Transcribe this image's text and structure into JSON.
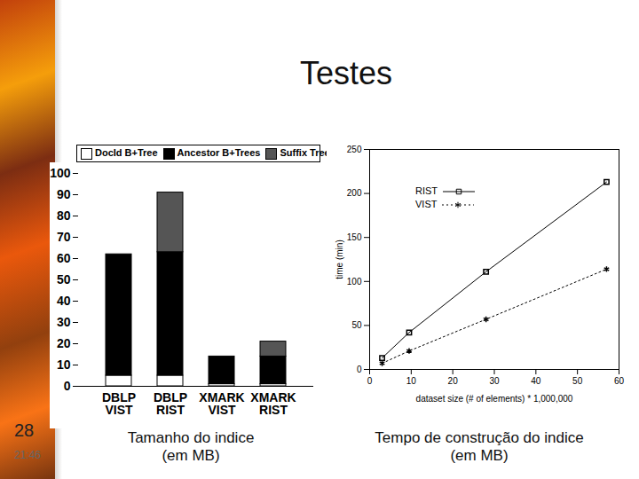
{
  "slide": {
    "title": "Testes",
    "number": "28",
    "footer": "21:46",
    "captions": [
      "Tamanho do indice\n(em MB)",
      "Tempo de construção do indice\n(em MB)"
    ]
  },
  "chart_data": [
    {
      "type": "bar",
      "stacked": true,
      "legend": "top",
      "categories": [
        "DBLP\nVIST",
        "DBLP\nRIST",
        "XMARK\nVIST",
        "XMARK\nRIST"
      ],
      "series": [
        {
          "name": "DocId B+Tree",
          "color": "#ffffff",
          "values": [
            5,
            5,
            1,
            1
          ]
        },
        {
          "name": "Ancestor B+Trees",
          "color": "#000000",
          "values": [
            57,
            58,
            13,
            13
          ]
        },
        {
          "name": "Suffix Tree",
          "color": "#555555",
          "values": [
            0,
            28,
            0,
            7
          ]
        }
      ],
      "ylim": [
        0,
        100
      ],
      "yticks": [
        0,
        10,
        20,
        30,
        40,
        50,
        60,
        70,
        80,
        90,
        100
      ]
    },
    {
      "type": "line",
      "legend": "upper left",
      "x_label": "dataset size (# of elements) * 1,000,000",
      "y_label": "time (min)",
      "x": [
        3,
        9.5,
        28,
        57
      ],
      "series": [
        {
          "name": "RIST",
          "color": "#000000",
          "marker": "square",
          "line_style": "solid",
          "values": [
            13,
            42,
            111,
            213
          ]
        },
        {
          "name": "VIST",
          "color": "#000000",
          "marker": "asterisk",
          "line_style": "dotted",
          "values": [
            7,
            21,
            57,
            114
          ]
        }
      ],
      "xlim": [
        0,
        60
      ],
      "xticks": [
        0,
        10,
        20,
        30,
        40,
        50,
        60
      ],
      "ylim": [
        0,
        250
      ],
      "yticks": [
        0,
        50,
        100,
        150,
        200,
        250
      ]
    }
  ]
}
